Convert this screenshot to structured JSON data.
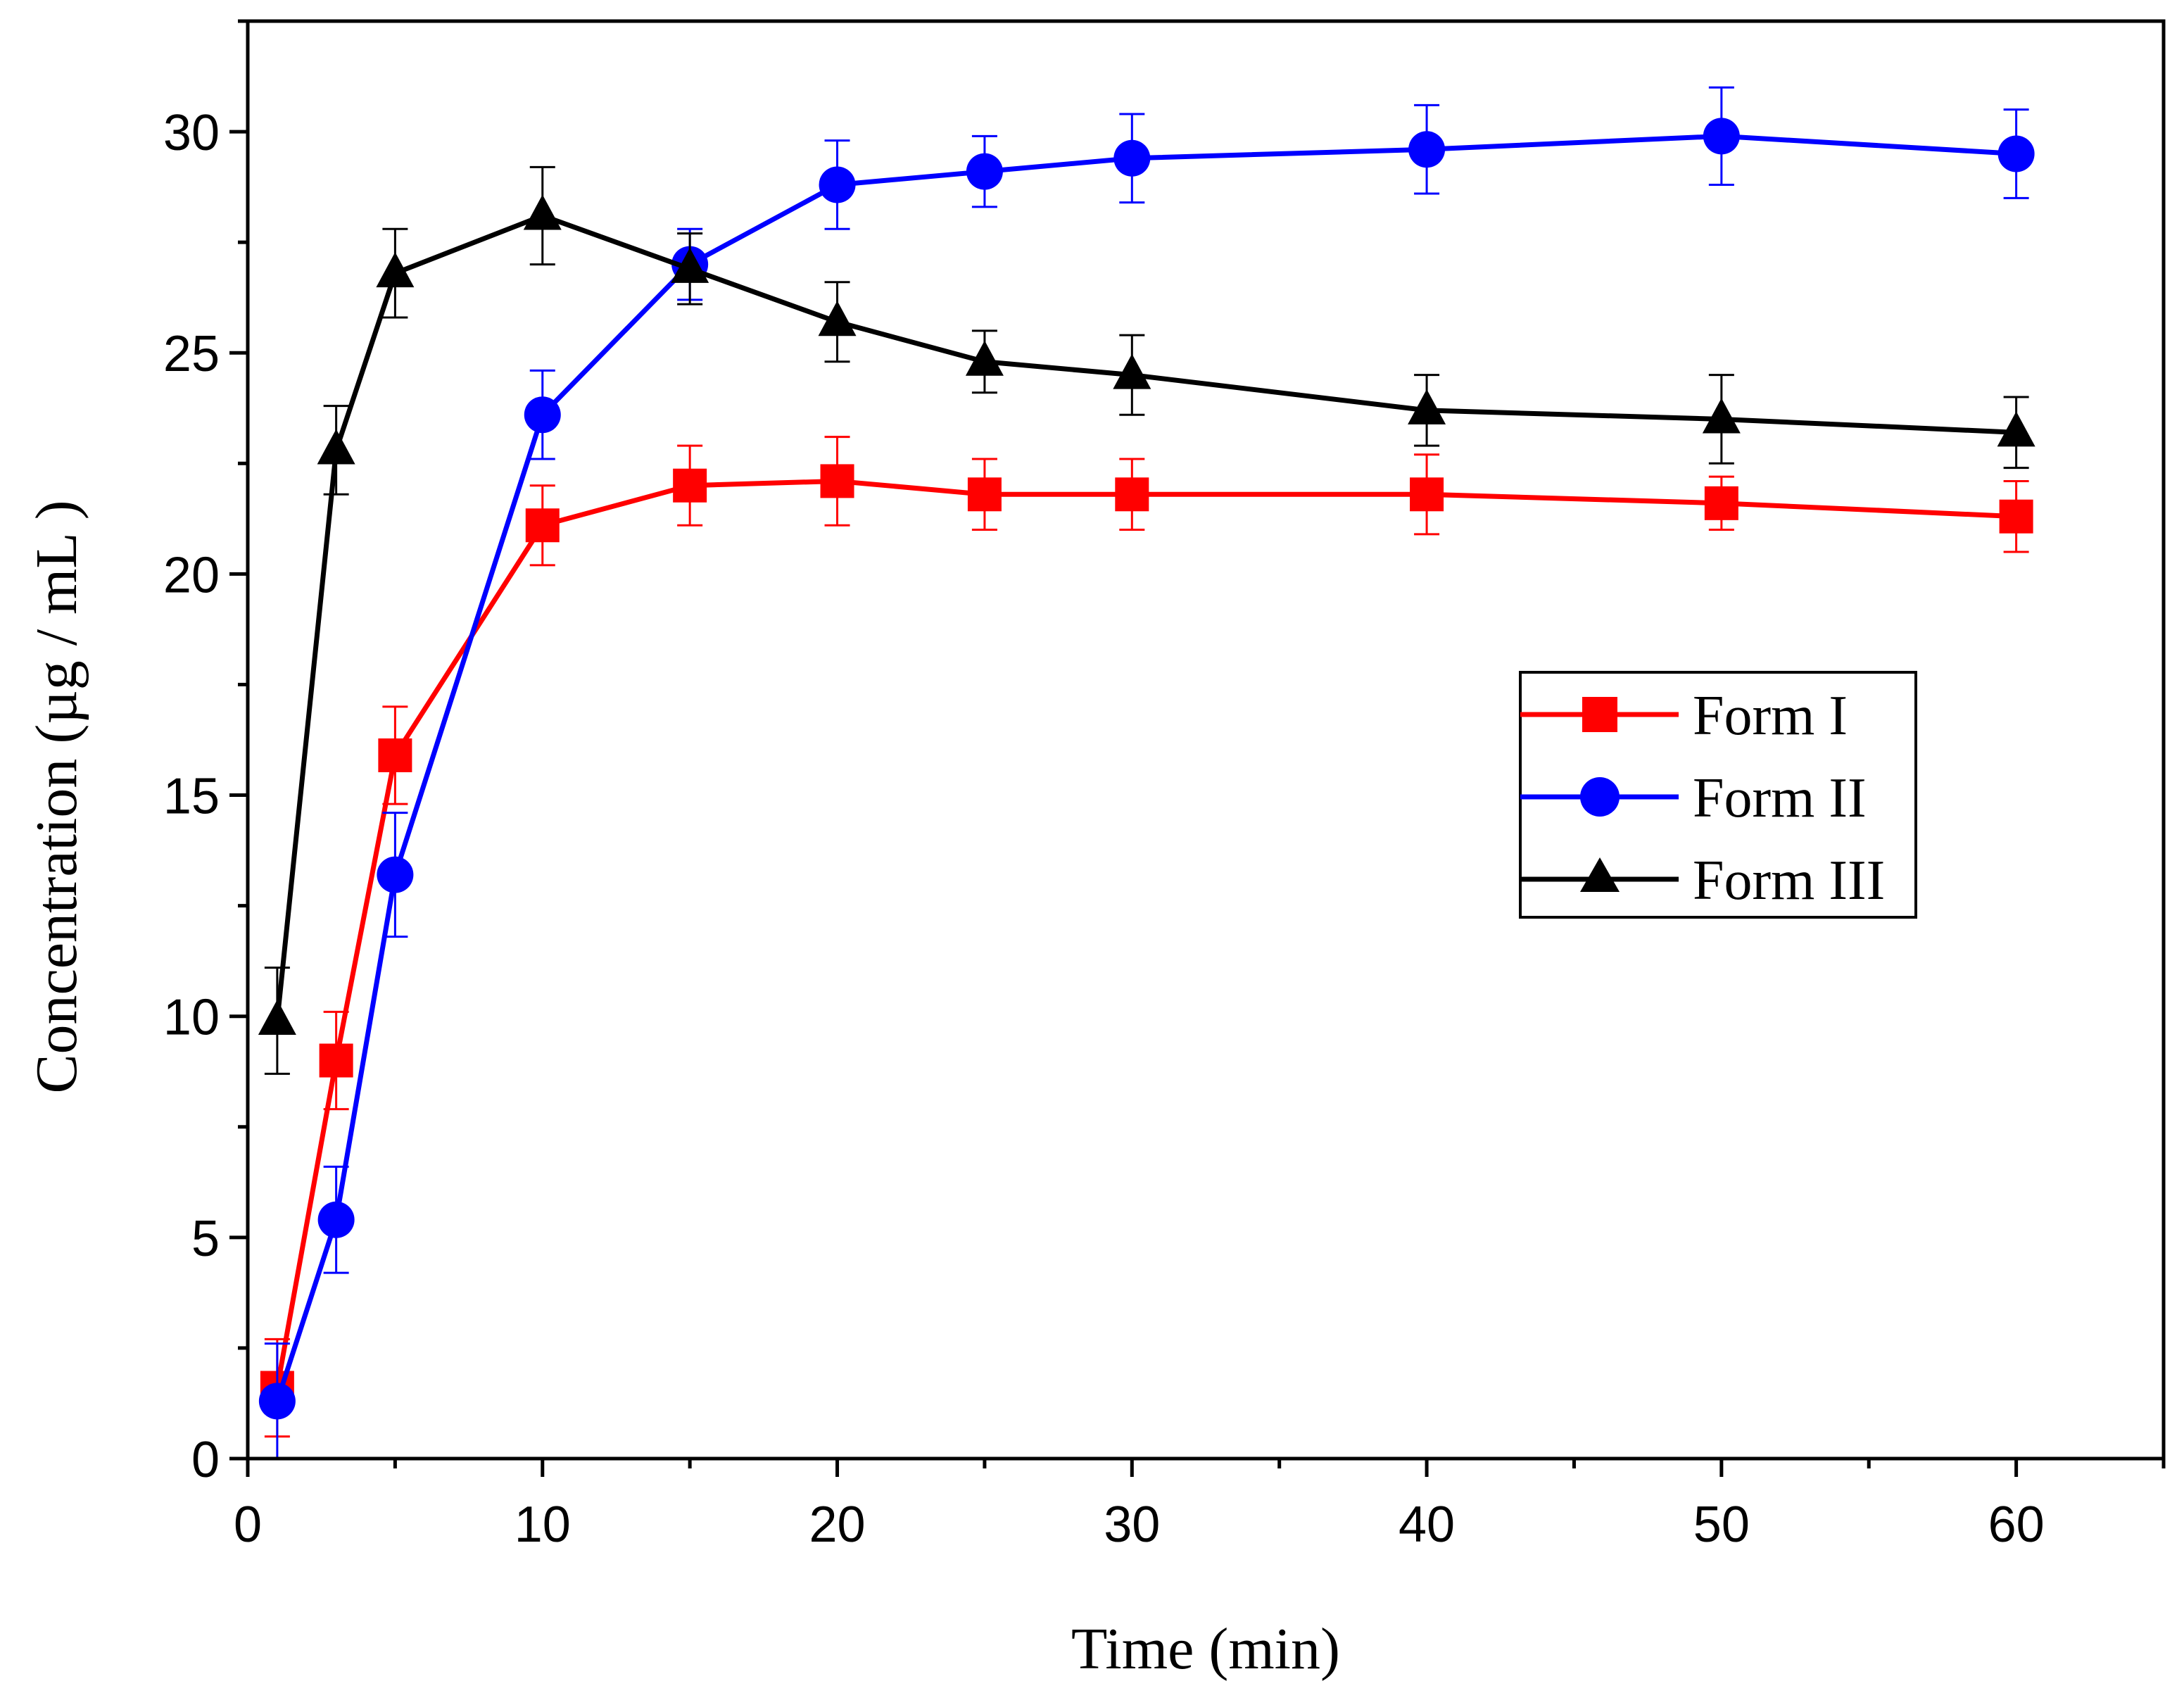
{
  "chart_data": {
    "type": "line",
    "title": "",
    "xlabel": "Time (min)",
    "ylabel": "Concentration (µg / mL )",
    "xlim": [
      0,
      65
    ],
    "ylim": [
      0,
      32.5
    ],
    "x_ticks": [
      0,
      10,
      20,
      30,
      40,
      50,
      60
    ],
    "x_tick_labels": [
      "0",
      "10",
      "20",
      "30",
      "40",
      "50",
      "60"
    ],
    "x_minor_ticks": [
      5,
      15,
      25,
      35,
      45,
      55,
      65
    ],
    "y_ticks": [
      0,
      5,
      10,
      15,
      20,
      25,
      30
    ],
    "y_tick_labels": [
      "0",
      "5",
      "10",
      "15",
      "20",
      "25",
      "30"
    ],
    "y_minor_ticks": [
      2.5,
      7.5,
      12.5,
      17.5,
      22.5,
      27.5,
      32.5
    ],
    "grid": false,
    "legend_position": "right-middle",
    "series": [
      {
        "name": "Form I",
        "color": "#ff0000",
        "marker": "square",
        "x": [
          1,
          3,
          5,
          10,
          15,
          20,
          25,
          30,
          40,
          50,
          60
        ],
        "y": [
          1.6,
          9.0,
          15.9,
          21.1,
          22.0,
          22.1,
          21.8,
          21.8,
          21.8,
          21.6,
          21.3
        ],
        "error": [
          1.1,
          1.1,
          1.1,
          0.9,
          0.9,
          1.0,
          0.8,
          0.8,
          0.9,
          0.6,
          0.8
        ]
      },
      {
        "name": "Form II",
        "color": "#0000ff",
        "marker": "circle",
        "x": [
          1,
          3,
          5,
          10,
          15,
          20,
          25,
          30,
          40,
          50,
          60
        ],
        "y": [
          1.3,
          5.4,
          13.2,
          23.6,
          27.0,
          28.8,
          29.1,
          29.4,
          29.6,
          29.9,
          29.5
        ],
        "error": [
          1.3,
          1.2,
          1.4,
          1.0,
          0.8,
          1.0,
          0.8,
          1.0,
          1.0,
          1.1,
          1.0
        ]
      },
      {
        "name": "Form III",
        "color": "#000000",
        "marker": "triangle",
        "x": [
          1,
          3,
          5,
          10,
          15,
          20,
          25,
          30,
          40,
          50,
          60
        ],
        "y": [
          9.9,
          22.8,
          26.8,
          28.1,
          26.9,
          25.7,
          24.8,
          24.5,
          23.7,
          23.5,
          23.2
        ],
        "error": [
          1.2,
          1.0,
          1.0,
          1.1,
          0.8,
          0.9,
          0.7,
          0.9,
          0.8,
          1.0,
          0.8
        ]
      }
    ]
  }
}
